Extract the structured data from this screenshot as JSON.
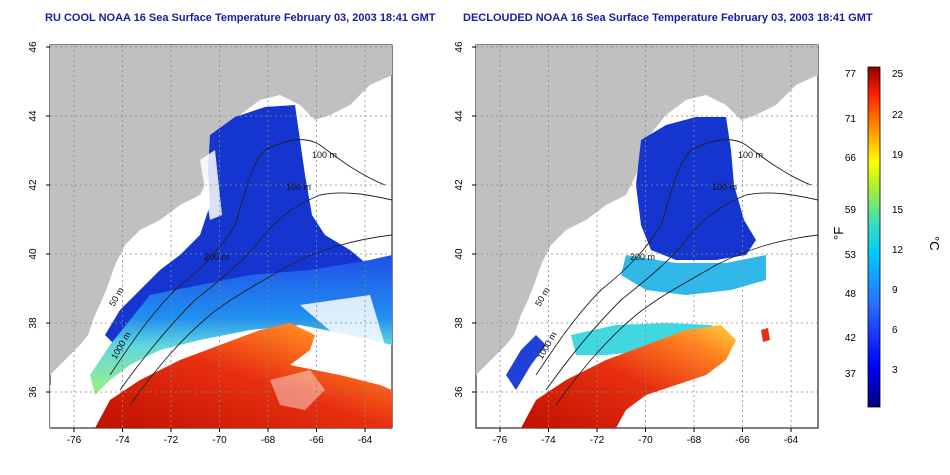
{
  "panels": [
    {
      "title": "RU COOL NOAA 16 Sea Surface Temperature February 03, 2003 18:41 GMT",
      "contours": [
        "100 m",
        "100 m",
        "200 m",
        "50 m",
        "1000 m"
      ]
    },
    {
      "title": "DECLOUDED NOAA 16 Sea Surface Temperature February 03, 2003 18:41 GMT",
      "contours": [
        "100 m",
        "100 m",
        "200 m",
        "50 m",
        "1000 m"
      ]
    }
  ],
  "axes": {
    "x_ticks": [
      "-76",
      "-74",
      "-72",
      "-70",
      "-68",
      "-66",
      "-64"
    ],
    "y_ticks": [
      "46",
      "44",
      "42",
      "40",
      "38",
      "36"
    ]
  },
  "colorbar": {
    "fahrenheit_label": "°F",
    "celsius_label": "°C",
    "fahrenheit_ticks": [
      "77",
      "71",
      "66",
      "59",
      "53",
      "48",
      "42",
      "37"
    ],
    "celsius_ticks": [
      "25",
      "22",
      "19",
      "15",
      "12",
      "9",
      "6",
      "3"
    ]
  },
  "colors": {
    "land": "#c0c0c0",
    "cloud": "#ffffff",
    "cold": "#1020c8",
    "mid": "#40d0e8",
    "warm": "#e83010",
    "title": "#1a1aa8"
  }
}
